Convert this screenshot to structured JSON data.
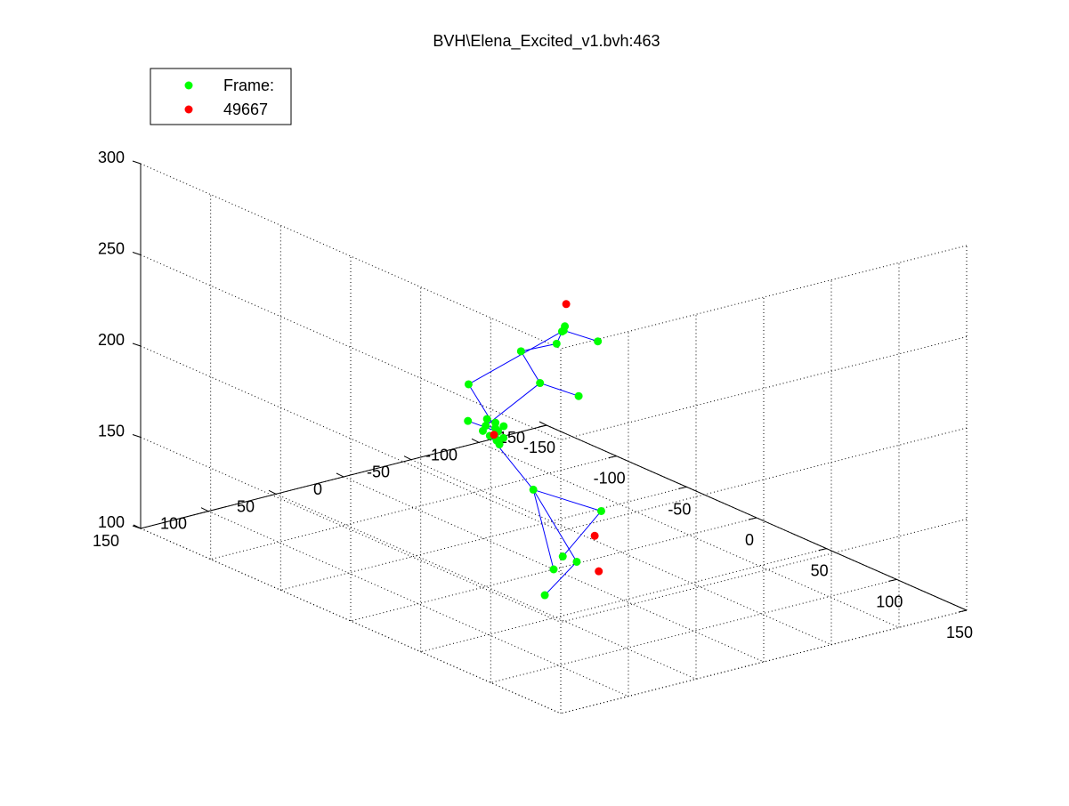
{
  "chart_data": {
    "type": "scatter",
    "title": "BVH\\Elena_Excited_v1.bvh:463",
    "xlabel": "",
    "ylabel": "",
    "zlabel": "",
    "xlim": [
      -150,
      150
    ],
    "ylim": [
      -150,
      150
    ],
    "zlim": [
      100,
      300
    ],
    "x_ticks": [
      "-150",
      "-100",
      "-50",
      "0",
      "50",
      "100",
      "150"
    ],
    "y_ticks": [
      "-150",
      "-100",
      "-50",
      "0",
      "50",
      "100",
      "150"
    ],
    "z_ticks": [
      "100",
      "150",
      "200",
      "250",
      "300"
    ],
    "grid": true,
    "legend": {
      "location": "top-left",
      "entries": [
        {
          "label": "Frame:",
          "color": "#00ff00"
        },
        {
          "label": "49667",
          "color": "#ff0000"
        }
      ]
    },
    "series": [
      {
        "name": "Frame:",
        "color": "#00ff00",
        "points": [
          [
            0,
            0,
            100
          ],
          [
            -1,
            14,
            146
          ],
          [
            5,
            -30,
            128
          ],
          [
            21,
            15,
            117
          ],
          [
            2,
            -15,
            102
          ],
          [
            13,
            20,
            94
          ],
          [
            -2,
            35,
            178
          ],
          [
            -4,
            43,
            180
          ],
          [
            -3,
            40,
            184
          ],
          [
            -6,
            44,
            185
          ],
          [
            -3,
            38,
            182
          ],
          [
            -2,
            40,
            178
          ],
          [
            -7,
            42,
            188
          ],
          [
            -1,
            42,
            188
          ],
          [
            -6,
            35,
            180
          ],
          [
            -10,
            53,
            188
          ],
          [
            -3,
            39,
            177
          ],
          [
            -2,
            38,
            175
          ],
          [
            -9,
            43,
            181
          ],
          [
            1,
            38,
            186
          ],
          [
            -25,
            37,
            200
          ],
          [
            -4,
            20,
            222
          ],
          [
            5,
            3,
            226
          ],
          [
            7,
            1,
            233
          ],
          [
            8,
            0,
            236
          ],
          [
            12,
            5,
            236
          ],
          [
            19,
            -13,
            229
          ],
          [
            -2,
            8,
            203
          ],
          [
            14,
            -4,
            199
          ]
        ]
      },
      {
        "name": "49667",
        "color": "#ff0000",
        "points": [
          [
            -4,
            40,
            180
          ],
          [
            8,
            -1,
            248
          ],
          [
            10,
            -20,
            118
          ],
          [
            10,
            -23,
            98
          ]
        ]
      }
    ],
    "bones": [
      [
        0,
        1
      ],
      [
        1,
        2
      ],
      [
        2,
        3
      ],
      [
        1,
        4
      ],
      [
        4,
        5
      ],
      [
        1,
        7
      ],
      [
        7,
        8
      ],
      [
        8,
        9
      ],
      [
        9,
        27
      ],
      [
        27,
        21
      ],
      [
        27,
        28
      ],
      [
        21,
        22
      ],
      [
        22,
        23
      ],
      [
        23,
        24
      ],
      [
        24,
        25
      ],
      [
        25,
        26
      ],
      [
        23,
        20
      ],
      [
        20,
        14
      ],
      [
        14,
        15
      ]
    ],
    "bone_color": "#0000ff"
  }
}
